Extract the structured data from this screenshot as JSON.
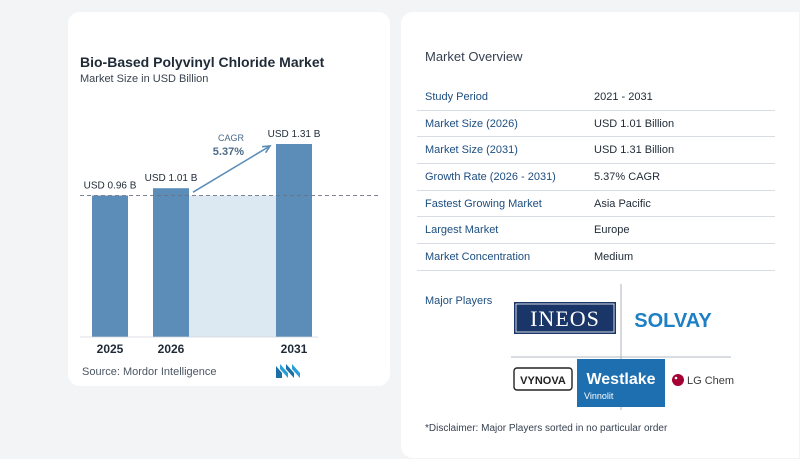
{
  "chart_data": {
    "type": "bar",
    "title": "Bio-Based Polyvinyl Chloride Market",
    "subtitle": "Market Size in USD Billion",
    "categories": [
      "2025",
      "2026",
      "2031"
    ],
    "values": [
      0.96,
      1.01,
      1.31
    ],
    "value_labels": [
      "USD 0.96 B",
      "USD 1.01 B",
      "USD 1.31 B"
    ],
    "ylim": [
      0,
      1.31
    ],
    "bar_color": "#5b8db8",
    "shade_color": "#dce8f2",
    "arrow_color": "#5b8db8",
    "annotation": {
      "label": "CAGR",
      "value": "5.37%"
    },
    "reference_line": 0.96
  },
  "source": "Source:  Mordor Intelligence",
  "overview": {
    "title": "Market Overview",
    "rows": [
      {
        "label": "Study Period",
        "value": "2021 - 2031"
      },
      {
        "label": "Market Size (2026)",
        "value": "USD 1.01 Billion"
      },
      {
        "label": "Market Size (2031)",
        "value": "USD 1.31 Billion"
      },
      {
        "label": "Growth Rate (2026 - 2031)",
        "value": "5.37% CAGR"
      },
      {
        "label": "Fastest Growing Market",
        "value": "Asia Pacific"
      },
      {
        "label": "Largest Market",
        "value": "Europe"
      },
      {
        "label": "Market Concentration",
        "value": "Medium"
      }
    ]
  },
  "players": {
    "label": "Major Players",
    "logos": {
      "ineos": "INEOS",
      "solvay": "SOLVAY",
      "vynova": "VYNOVA",
      "westlake": "Westlake",
      "vinnolit": "Vinnolit",
      "lgchem": "LG Chem"
    }
  },
  "disclaimer": "*Disclaimer: Major Players sorted in no particular order",
  "colors": {
    "accent": "#1c4e80",
    "ineos_bg": "#1a3668",
    "solvay_text": "#1d7fc4",
    "westlake_bg": "#1e6fb0",
    "lg_red": "#a50034"
  }
}
